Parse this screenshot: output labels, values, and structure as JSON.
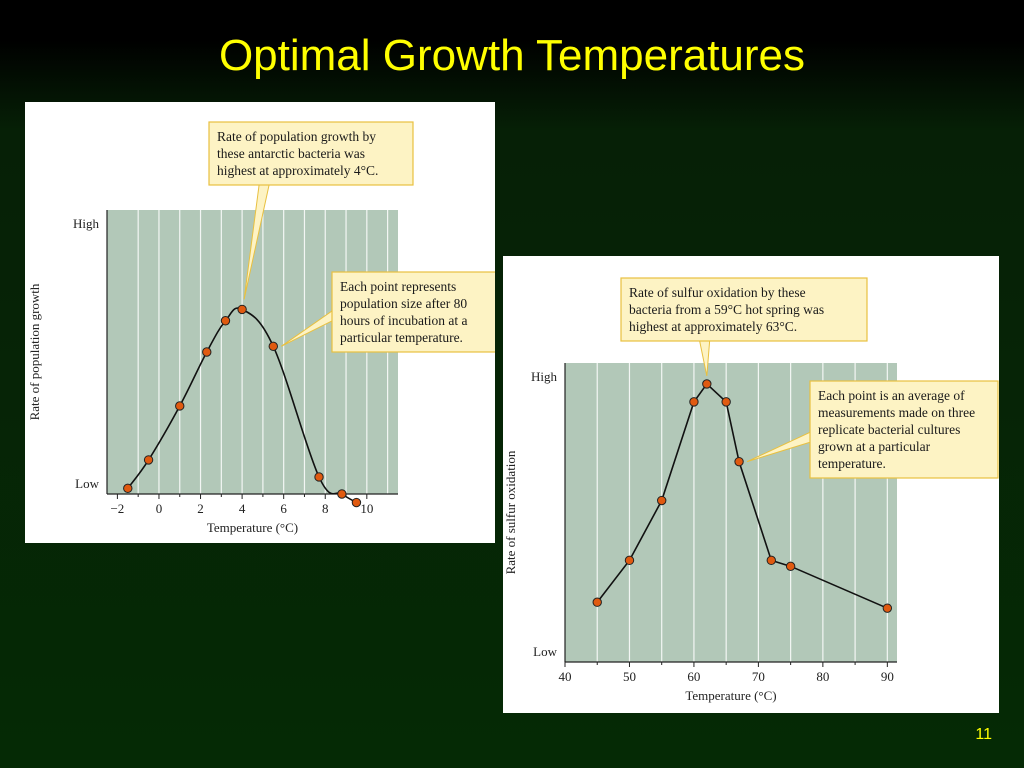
{
  "slide": {
    "title": "Optimal Growth Temperatures",
    "page_number": "11"
  },
  "colors": {
    "title": "#ffff00",
    "background": "#052a05",
    "plot_area": "#b2c8b8",
    "point_fill": "#e05a10",
    "callout_fill": "#fdf3c4",
    "callout_border": "#e8c040"
  },
  "chart_data": [
    {
      "type": "line",
      "title": "",
      "xlabel": "Temperature (°C)",
      "ylabel": "Rate of population growth",
      "xlim": [
        -2.5,
        11.5
      ],
      "ylim": [
        0,
        10
      ],
      "x_ticks": [
        -2,
        0,
        2,
        4,
        6,
        8,
        10
      ],
      "x_tick_labels": [
        "−2",
        "0",
        "2",
        "4",
        "6",
        "8",
        "10"
      ],
      "y_tick_labels": {
        "high": "High",
        "low": "Low"
      },
      "grid": "vertical lines",
      "series": [
        {
          "points": [
            {
              "x": -1.5,
              "y": 0.2
            },
            {
              "x": -0.5,
              "y": 1.2
            },
            {
              "x": 1.0,
              "y": 3.1
            },
            {
              "x": 2.3,
              "y": 5.0
            },
            {
              "x": 3.2,
              "y": 6.1
            },
            {
              "x": 4.0,
              "y": 6.5
            },
            {
              "x": 5.5,
              "y": 5.2
            },
            {
              "x": 7.7,
              "y": 0.6
            },
            {
              "x": 8.8,
              "y": 0.0
            },
            {
              "x": 9.5,
              "y": -0.3
            }
          ]
        }
      ],
      "annotations": [
        {
          "text": "Rate of population growth by these antarctic bacteria was highest at approximately 4°C."
        },
        {
          "text": "Each point represents population size after 80 hours of incubation at a particular temperature."
        }
      ]
    },
    {
      "type": "line",
      "title": "",
      "xlabel": "Temperature (°C)",
      "ylabel": "Rate of sulfur oxidation",
      "xlim": [
        40,
        91.5
      ],
      "ylim": [
        0,
        10
      ],
      "x_ticks": [
        40,
        50,
        60,
        70,
        80,
        90
      ],
      "x_tick_labels": [
        "40",
        "50",
        "60",
        "70",
        "80",
        "90"
      ],
      "y_tick_labels": {
        "high": "High",
        "low": "Low"
      },
      "grid": "vertical lines",
      "series": [
        {
          "points": [
            {
              "x": 45,
              "y": 2.0
            },
            {
              "x": 50,
              "y": 3.4
            },
            {
              "x": 55,
              "y": 5.4
            },
            {
              "x": 60,
              "y": 8.7
            },
            {
              "x": 62,
              "y": 9.3
            },
            {
              "x": 65,
              "y": 8.7
            },
            {
              "x": 67,
              "y": 6.7
            },
            {
              "x": 72,
              "y": 3.4
            },
            {
              "x": 75,
              "y": 3.2
            },
            {
              "x": 90,
              "y": 1.8
            }
          ]
        }
      ],
      "annotations": [
        {
          "text": "Rate of sulfur oxidation by these bacteria from a 59°C hot spring was highest at approximately 63°C."
        },
        {
          "text": "Each point is an average of measurements made on three replicate bacterial cultures grown at a particular temperature."
        }
      ]
    }
  ]
}
